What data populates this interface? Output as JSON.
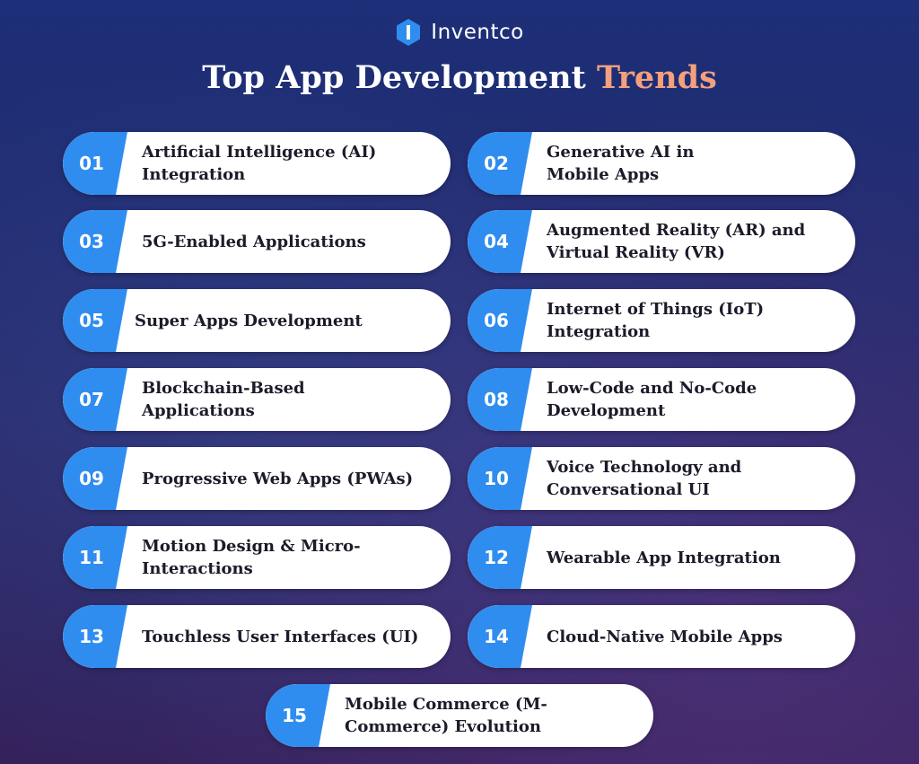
{
  "brand": {
    "name": "Inventco",
    "icon": "hexagon-i-logo-icon"
  },
  "header": {
    "title_main": "Top App Development",
    "title_accent": "Trends"
  },
  "colors": {
    "accent": "#f4a07c",
    "badge": "#2f8df0",
    "text": "#1b1b2a"
  },
  "trends": [
    {
      "number": "01",
      "line1": "Artificial Intelligence (AI)",
      "line2": "Integration"
    },
    {
      "number": "02",
      "line1": "Generative AI in",
      "line2": "Mobile Apps"
    },
    {
      "number": "03",
      "line1": "5G-Enabled Applications",
      "line2": ""
    },
    {
      "number": "04",
      "line1": "Augmented Reality (AR) and",
      "line2": "Virtual Reality (VR)"
    },
    {
      "number": "05",
      "line1": "Super Apps Development",
      "line2": ""
    },
    {
      "number": "06",
      "line1": "Internet of Things (IoT)",
      "line2": "Integration"
    },
    {
      "number": "07",
      "line1": "Blockchain-Based",
      "line2": "Applications"
    },
    {
      "number": "08",
      "line1": "Low-Code and No-Code",
      "line2": "Development"
    },
    {
      "number": "09",
      "line1": "Progressive Web Apps (PWAs)",
      "line2": ""
    },
    {
      "number": "10",
      "line1": "Voice Technology and",
      "line2": "Conversational UI"
    },
    {
      "number": "11",
      "line1": "Motion Design & Micro-",
      "line2": "Interactions"
    },
    {
      "number": "12",
      "line1": "Wearable App Integration",
      "line2": ""
    },
    {
      "number": "13",
      "line1": "Touchless User Interfaces (UI)",
      "line2": ""
    },
    {
      "number": "14",
      "line1": "Cloud-Native Mobile Apps",
      "line2": ""
    },
    {
      "number": "15",
      "line1": "Mobile Commerce (M-",
      "line2": "Commerce) Evolution"
    }
  ]
}
